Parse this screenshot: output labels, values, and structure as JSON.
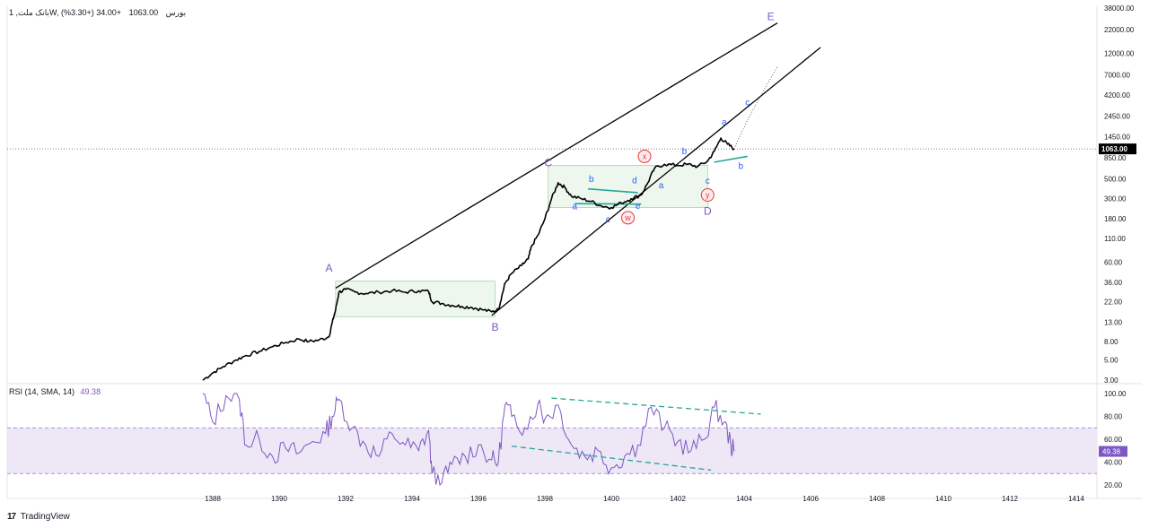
{
  "header": {
    "symbol": "بانک ملت, 1W, بورس",
    "close": "1063.00",
    "change": "+34.00 (+3.30%)"
  },
  "rsi_header": {
    "label": "RSI (14, SMA, 14)",
    "value": "49.38"
  },
  "brand": {
    "icon": "tradingview-logo-icon",
    "text": "TradingView"
  },
  "colors": {
    "price_line": "#000000",
    "wave_label": "#7e57c2",
    "sub_wave_label": "#2962ff",
    "circle_label": "#e53935",
    "box_fill": "#e8f5e9",
    "box_border": "#a5d6a7",
    "teal_line": "#26a69a",
    "rsi_line": "#7e57c2",
    "rsi_band": "#ede7f6",
    "dashed_trend": "#26a69a"
  },
  "chart_data": [
    {
      "type": "line",
      "name": "price",
      "yscale": "log",
      "x_ticks": [
        "1388",
        "1390",
        "1392",
        "1394",
        "1396",
        "1398",
        "1400",
        "1402",
        "1404",
        "1406",
        "1408",
        "1410",
        "1412",
        "1414"
      ],
      "y_ticks": [
        "38000.00",
        "22000.00",
        "12000.00",
        "7000.00",
        "4200.00",
        "2450.00",
        "1450.00",
        "850.00",
        "500.00",
        "300.00",
        "180.00",
        "110.00",
        "60.00",
        "36.00",
        "22.00",
        "13.00",
        "8.00",
        "5.00",
        "3.00"
      ],
      "last_value_label": "1063.00",
      "current_price": 1063,
      "points": [
        [
          1387.7,
          3
        ],
        [
          1388.0,
          3.6
        ],
        [
          1388.3,
          4.2
        ],
        [
          1388.7,
          5.0
        ],
        [
          1389.0,
          5.6
        ],
        [
          1389.4,
          6.2
        ],
        [
          1389.8,
          7.0
        ],
        [
          1390.2,
          7.8
        ],
        [
          1390.6,
          8.5
        ],
        [
          1390.9,
          8.0
        ],
        [
          1391.2,
          8.3
        ],
        [
          1391.5,
          9
        ],
        [
          1391.6,
          13
        ],
        [
          1391.7,
          18
        ],
        [
          1391.8,
          28
        ],
        [
          1392.0,
          30
        ],
        [
          1392.3,
          28
        ],
        [
          1392.6,
          27
        ],
        [
          1393.0,
          28
        ],
        [
          1393.4,
          29
        ],
        [
          1393.8,
          28
        ],
        [
          1394.2,
          29
        ],
        [
          1394.5,
          28.5
        ],
        [
          1394.6,
          22
        ],
        [
          1394.9,
          21
        ],
        [
          1395.2,
          20
        ],
        [
          1395.5,
          19.5
        ],
        [
          1395.8,
          19
        ],
        [
          1396.1,
          18
        ],
        [
          1396.4,
          17
        ],
        [
          1396.6,
          18
        ],
        [
          1396.7,
          25
        ],
        [
          1396.8,
          35
        ],
        [
          1397.0,
          45
        ],
        [
          1397.3,
          55
        ],
        [
          1397.5,
          65
        ],
        [
          1397.6,
          90
        ],
        [
          1397.8,
          120
        ],
        [
          1398.0,
          180
        ],
        [
          1398.2,
          300
        ],
        [
          1398.4,
          450
        ],
        [
          1398.6,
          400
        ],
        [
          1398.8,
          320
        ],
        [
          1399.1,
          300
        ],
        [
          1399.4,
          280
        ],
        [
          1399.7,
          250
        ],
        [
          1400.0,
          240
        ],
        [
          1400.3,
          270
        ],
        [
          1400.6,
          300
        ],
        [
          1400.9,
          330
        ],
        [
          1401.1,
          450
        ],
        [
          1401.3,
          650
        ],
        [
          1401.6,
          720
        ],
        [
          1402.0,
          700
        ],
        [
          1402.3,
          720
        ],
        [
          1402.6,
          680
        ],
        [
          1402.9,
          780
        ],
        [
          1403.1,
          1000
        ],
        [
          1403.3,
          1400
        ],
        [
          1403.5,
          1200
        ],
        [
          1403.7,
          1063
        ]
      ]
    },
    {
      "type": "line",
      "name": "RSI (14, SMA, 14)",
      "ylim": [
        0,
        100
      ],
      "y_ticks": [
        "100.00",
        "80.00",
        "60.00",
        "40.00",
        "20.00"
      ],
      "band": [
        30,
        70
      ],
      "last_value_label": "49.38",
      "last_value": 49.38,
      "points": [
        [
          1387.7,
          100
        ],
        [
          1388.0,
          75
        ],
        [
          1388.4,
          98
        ],
        [
          1388.8,
          95
        ],
        [
          1389.0,
          55
        ],
        [
          1389.4,
          60
        ],
        [
          1389.8,
          45
        ],
        [
          1390.2,
          52
        ],
        [
          1390.6,
          48
        ],
        [
          1391.0,
          58
        ],
        [
          1391.4,
          65
        ],
        [
          1391.6,
          80
        ],
        [
          1391.8,
          95
        ],
        [
          1392.2,
          70
        ],
        [
          1392.6,
          55
        ],
        [
          1393.0,
          45
        ],
        [
          1393.4,
          65
        ],
        [
          1393.8,
          55
        ],
        [
          1394.2,
          50
        ],
        [
          1394.5,
          68
        ],
        [
          1394.6,
          30
        ],
        [
          1394.9,
          22
        ],
        [
          1395.2,
          38
        ],
        [
          1395.6,
          45
        ],
        [
          1396.0,
          55
        ],
        [
          1396.4,
          42
        ],
        [
          1396.6,
          40
        ],
        [
          1396.8,
          90
        ],
        [
          1397.0,
          80
        ],
        [
          1397.4,
          70
        ],
        [
          1397.8,
          92
        ],
        [
          1398.0,
          78
        ],
        [
          1398.4,
          90
        ],
        [
          1398.8,
          55
        ],
        [
          1399.2,
          45
        ],
        [
          1399.6,
          50
        ],
        [
          1400.0,
          35
        ],
        [
          1400.4,
          45
        ],
        [
          1400.8,
          55
        ],
        [
          1401.2,
          88
        ],
        [
          1401.6,
          70
        ],
        [
          1402.0,
          58
        ],
        [
          1402.4,
          50
        ],
        [
          1402.8,
          60
        ],
        [
          1403.1,
          88
        ],
        [
          1403.4,
          75
        ],
        [
          1403.6,
          55
        ],
        [
          1403.7,
          49.38
        ]
      ]
    }
  ],
  "annotations": {
    "waves": [
      {
        "text": "A",
        "x": 1391.5,
        "y": 47,
        "kind": "major"
      },
      {
        "text": "B",
        "x": 1396.5,
        "y": 10.5,
        "kind": "major"
      },
      {
        "text": "C",
        "x": 1398.1,
        "y": 680,
        "kind": "major"
      },
      {
        "text": "D",
        "x": 1402.9,
        "y": 200,
        "kind": "major"
      },
      {
        "text": "E",
        "x": 1404.8,
        "y": 28000,
        "kind": "major"
      }
    ],
    "sub_waves": [
      {
        "text": "a",
        "x": 1398.9,
        "y": 230,
        "kind": "minor"
      },
      {
        "text": "b",
        "x": 1399.4,
        "y": 460,
        "kind": "minor"
      },
      {
        "text": "c",
        "x": 1399.9,
        "y": 165,
        "kind": "minor"
      },
      {
        "text": "d",
        "x": 1400.7,
        "y": 445,
        "kind": "minor"
      },
      {
        "text": "e",
        "x": 1400.8,
        "y": 232,
        "kind": "minor"
      },
      {
        "text": "a",
        "x": 1401.5,
        "y": 390,
        "kind": "minor"
      },
      {
        "text": "b",
        "x": 1402.2,
        "y": 930,
        "kind": "minor"
      },
      {
        "text": "c",
        "x": 1402.9,
        "y": 440,
        "kind": "minor"
      },
      {
        "text": "a",
        "x": 1403.4,
        "y": 1950,
        "kind": "minor"
      },
      {
        "text": "b",
        "x": 1403.9,
        "y": 640,
        "kind": "minor"
      },
      {
        "text": "c",
        "x": 1404.1,
        "y": 3200,
        "kind": "minor"
      }
    ],
    "circles": [
      {
        "text": "x",
        "x": 1401.0,
        "y": 880
      },
      {
        "text": "w",
        "x": 1400.5,
        "y": 185
      },
      {
        "text": "y",
        "x": 1402.9,
        "y": 330
      }
    ]
  }
}
